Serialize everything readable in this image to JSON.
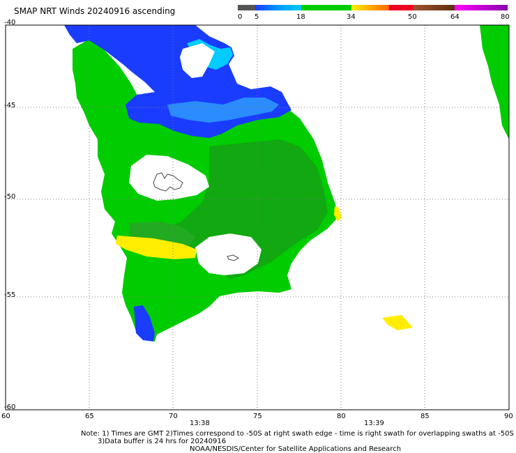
{
  "title": "SMAP NRT Winds 20240916 ascending",
  "legend": {
    "tick_labels": [
      "0",
      "5",
      "18",
      "34",
      "50",
      "64",
      "80"
    ],
    "colors": [
      "#555555",
      "#2266ff",
      "#00cc00",
      "#ffdd00",
      "#ff2222",
      "#8b5a2b",
      "#cc00cc"
    ]
  },
  "axes": {
    "lat_labels": [
      "-40",
      "-45",
      "-50",
      "-55",
      "-60"
    ],
    "lon_labels": [
      "60",
      "65",
      "70",
      "75",
      "80",
      "85",
      "90"
    ]
  },
  "swath_times": [
    "13:38",
    "13:39"
  ],
  "notes": {
    "line1": "Note: 1) Times are GMT 2)Times correspond to -50S at right swath edge - time is right swath for overlapping swaths at -50S",
    "line2": "3)Data buffer is 24 hrs for 20240916",
    "line3": "NOAA/NESDIS/Center for Satellite Applications and Research"
  }
}
